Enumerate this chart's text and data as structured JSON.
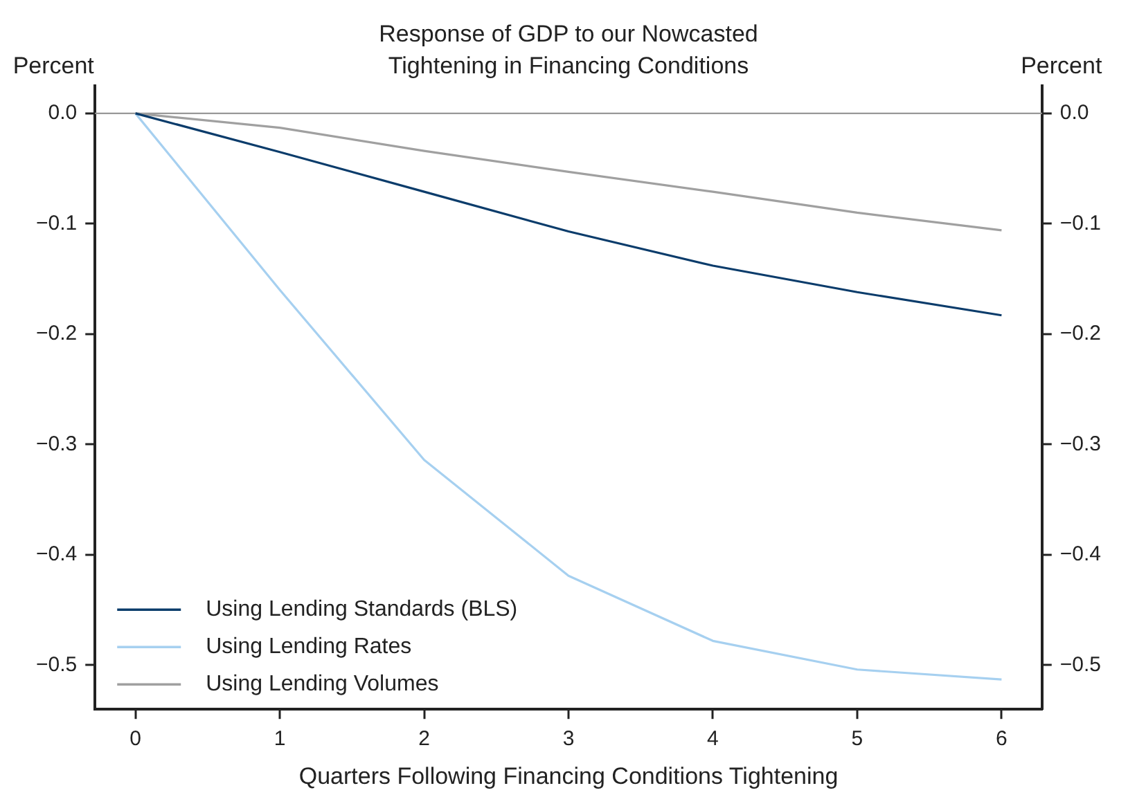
{
  "chart_data": {
    "type": "line",
    "title": "Response of GDP to our Nowcasted Tightening in Financing Conditions",
    "xlabel": "Quarters Following Financing Conditions Tightening",
    "ylabel": "Percent",
    "y2label": "Percent",
    "x": [
      0,
      1,
      2,
      3,
      4,
      5,
      6
    ],
    "series": [
      {
        "name": "Using Lending Standards (BLS)",
        "color": "#0b3c6b",
        "values": [
          0,
          -0.035,
          -0.071,
          -0.107,
          -0.138,
          -0.162,
          -0.183
        ]
      },
      {
        "name": "Using Lending Rates",
        "color": "#a6d0f0",
        "values": [
          0,
          -0.16,
          -0.314,
          -0.419,
          -0.478,
          -0.504,
          -0.513
        ]
      },
      {
        "name": "Using Lending Volumes",
        "color": "#a0a0a0",
        "values": [
          0,
          -0.013,
          -0.034,
          -0.053,
          -0.071,
          -0.09,
          -0.106
        ]
      }
    ],
    "xlim": [
      -0.28,
      6.28
    ],
    "xticks": [
      0,
      1,
      2,
      3,
      4,
      5,
      6
    ],
    "ylim": [
      -0.54,
      0.025
    ],
    "yticks": [
      {
        "value": 0,
        "label": "0.0"
      },
      -0.1,
      -0.2,
      -0.3,
      -0.4,
      -0.5
    ],
    "y2lim": [
      -0.54,
      0.025
    ],
    "y2ticks": [
      {
        "value": 0,
        "label": "0.0"
      },
      -0.1,
      -0.2,
      -0.3,
      -0.4,
      -0.5
    ],
    "ref_lines": [
      {
        "axis": "y",
        "value": 0,
        "color": "#999999"
      }
    ],
    "legend": "bottom left",
    "grid": false,
    "marker": "none",
    "line_style": "solid"
  }
}
